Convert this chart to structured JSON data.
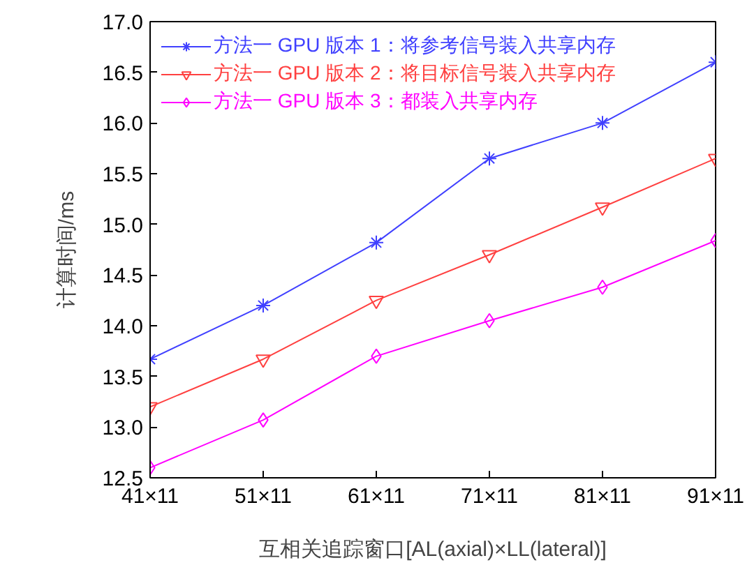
{
  "chart_data": {
    "type": "line",
    "xlabel": "互相关追踪窗口[AL(axial)×LL(lateral)]",
    "ylabel": "计算时间/ms",
    "categories": [
      "41×11",
      "51×11",
      "61×11",
      "71×11",
      "81×11",
      "91×11"
    ],
    "ylim": [
      12.5,
      17.0
    ],
    "yticks": [
      {
        "value": 12.5,
        "label": "12.5"
      },
      {
        "value": 13,
        "label": "13.0"
      },
      {
        "value": 13.5,
        "label": "13.5"
      },
      {
        "value": 14,
        "label": "14.0"
      },
      {
        "value": 14.5,
        "label": "14.5"
      },
      {
        "value": 15,
        "label": "15.0"
      },
      {
        "value": 15.5,
        "label": "15.5"
      },
      {
        "value": 16,
        "label": "16.0"
      },
      {
        "value": 16.5,
        "label": "16.5"
      },
      {
        "value": 17,
        "label": "17.0"
      }
    ],
    "grid": false,
    "legend": "top left",
    "series": [
      {
        "name": "方法一 GPU 版本 1：将参考信号装入共享内存",
        "color": "#4040ff",
        "marker": "cross",
        "values": [
          13.67,
          14.2,
          14.82,
          15.65,
          16.0,
          16.6
        ]
      },
      {
        "name": "方法一 GPU 版本 2：将目标信号装入共享内存",
        "color": "#ff4040",
        "marker": "triangle",
        "values": [
          13.2,
          13.67,
          14.25,
          14.7,
          15.17,
          15.65
        ]
      },
      {
        "name": "方法一 GPU 版本 3：都装入共享内存",
        "color": "#ff00ff",
        "marker": "diamond",
        "values": [
          12.6,
          13.07,
          13.7,
          14.05,
          14.38,
          14.84
        ]
      }
    ]
  }
}
